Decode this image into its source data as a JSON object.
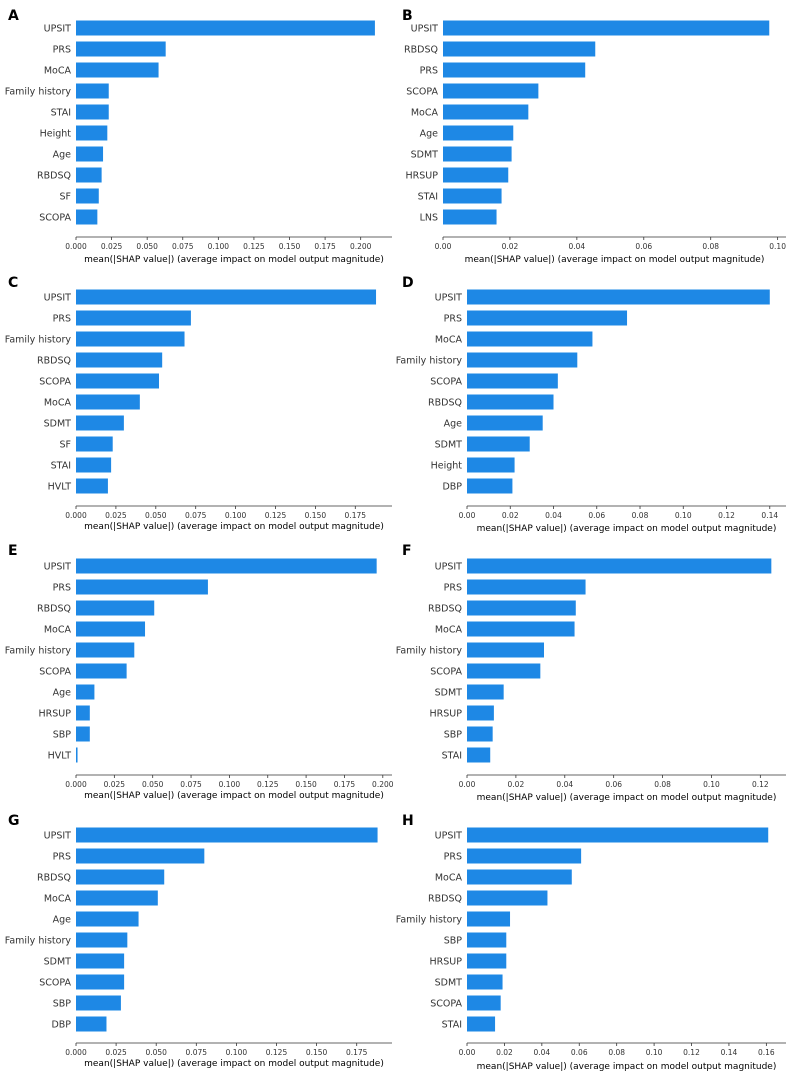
{
  "colors": {
    "bar": "#1e88e5",
    "axis": "#333333",
    "text": "#333333"
  },
  "chart_data": [
    {
      "panel": "A",
      "type": "bar",
      "orientation": "horizontal",
      "xlabel": "mean(|SHAP value|) (average impact on model output magnitude)",
      "categories": [
        "UPSIT",
        "PRS",
        "MoCA",
        "Family history",
        "STAI",
        "Height",
        "Age",
        "RBDSQ",
        "SF",
        "SCOPA"
      ],
      "values": [
        0.21,
        0.063,
        0.058,
        0.023,
        0.023,
        0.022,
        0.019,
        0.018,
        0.016,
        0.015
      ],
      "xlim": [
        0,
        0.222
      ],
      "ticks": [
        0,
        0.025,
        0.05,
        0.075,
        0.1,
        0.125,
        0.15,
        0.175,
        0.2
      ],
      "tick_labels": [
        "0.000",
        "0.025",
        "0.050",
        "0.075",
        "0.100",
        "0.125",
        "0.150",
        "0.175",
        "0.200"
      ]
    },
    {
      "panel": "B",
      "type": "bar",
      "orientation": "horizontal",
      "xlabel": "mean(|SHAP value|) (average impact on model output magnitude)",
      "categories": [
        "UPSIT",
        "RBDSQ",
        "PRS",
        "SCOPA",
        "MoCA",
        "Age",
        "SDMT",
        "HRSUP",
        "STAI",
        "LNS"
      ],
      "values": [
        0.0975,
        0.0455,
        0.0425,
        0.0285,
        0.0255,
        0.021,
        0.0205,
        0.0195,
        0.0175,
        0.016
      ],
      "xlim": [
        0,
        0.1025
      ],
      "ticks": [
        0,
        0.02,
        0.04,
        0.06,
        0.08,
        0.1
      ],
      "tick_labels": [
        "0.00",
        "0.02",
        "0.04",
        "0.06",
        "0.08",
        "0.10"
      ]
    },
    {
      "panel": "C",
      "type": "bar",
      "orientation": "horizontal",
      "xlabel": "mean(|SHAP value|) (average impact on model output magnitude)",
      "categories": [
        "UPSIT",
        "PRS",
        "Family history",
        "RBDSQ",
        "SCOPA",
        "MoCA",
        "SDMT",
        "SF",
        "STAI",
        "HVLT"
      ],
      "values": [
        0.188,
        0.072,
        0.068,
        0.054,
        0.052,
        0.04,
        0.03,
        0.023,
        0.022,
        0.02
      ],
      "xlim": [
        0,
        0.198
      ],
      "ticks": [
        0,
        0.025,
        0.05,
        0.075,
        0.1,
        0.125,
        0.15,
        0.175
      ],
      "tick_labels": [
        "0.000",
        "0.025",
        "0.050",
        "0.075",
        "0.100",
        "0.125",
        "0.150",
        "0.175"
      ]
    },
    {
      "panel": "D",
      "type": "bar",
      "orientation": "horizontal",
      "xlabel": "mean(|SHAP value|) (average impact on model output magnitude)",
      "categories": [
        "UPSIT",
        "PRS",
        "MoCA",
        "Family history",
        "SCOPA",
        "RBDSQ",
        "Age",
        "SDMT",
        "Height",
        "DBP"
      ],
      "values": [
        0.14,
        0.074,
        0.058,
        0.051,
        0.042,
        0.04,
        0.035,
        0.029,
        0.022,
        0.021
      ],
      "xlim": [
        0,
        0.1475
      ],
      "ticks": [
        0,
        0.02,
        0.04,
        0.06,
        0.08,
        0.1,
        0.12,
        0.14
      ],
      "tick_labels": [
        "0.00",
        "0.02",
        "0.04",
        "0.06",
        "0.08",
        "0.10",
        "0.12",
        "0.14"
      ]
    },
    {
      "panel": "E",
      "type": "bar",
      "orientation": "horizontal",
      "xlabel": "mean(|SHAP value|) (average impact on model output magnitude)",
      "categories": [
        "UPSIT",
        "PRS",
        "RBDSQ",
        "MoCA",
        "Family history",
        "SCOPA",
        "Age",
        "HRSUP",
        "SBP",
        "HVLT"
      ],
      "values": [
        0.196,
        0.086,
        0.051,
        0.045,
        0.038,
        0.033,
        0.012,
        0.009,
        0.009,
        0.001
      ],
      "xlim": [
        0,
        0.206
      ],
      "ticks": [
        0,
        0.025,
        0.05,
        0.075,
        0.1,
        0.125,
        0.15,
        0.175,
        0.2
      ],
      "tick_labels": [
        "0.000",
        "0.025",
        "0.050",
        "0.075",
        "0.100",
        "0.125",
        "0.150",
        "0.175",
        "0.200"
      ]
    },
    {
      "panel": "F",
      "type": "bar",
      "orientation": "horizontal",
      "xlabel": "mean(|SHAP value|) (average impact on model output magnitude)",
      "categories": [
        "UPSIT",
        "PRS",
        "RBDSQ",
        "MoCA",
        "Family history",
        "SCOPA",
        "SDMT",
        "HRSUP",
        "SBP",
        "STAI"
      ],
      "values": [
        0.1245,
        0.0485,
        0.0445,
        0.044,
        0.0315,
        0.03,
        0.015,
        0.011,
        0.0105,
        0.0095
      ],
      "xlim": [
        0,
        0.1305
      ],
      "ticks": [
        0,
        0.02,
        0.04,
        0.06,
        0.08,
        0.1,
        0.12
      ],
      "tick_labels": [
        "0.00",
        "0.02",
        "0.04",
        "0.06",
        "0.08",
        "0.10",
        "0.12"
      ]
    },
    {
      "panel": "G",
      "type": "bar",
      "orientation": "horizontal",
      "xlabel": "mean(|SHAP value|) (average impact on model output magnitude)",
      "categories": [
        "UPSIT",
        "PRS",
        "RBDSQ",
        "MoCA",
        "Age",
        "Family history",
        "SDMT",
        "SCOPA",
        "SBP",
        "DBP"
      ],
      "values": [
        0.188,
        0.08,
        0.055,
        0.051,
        0.039,
        0.032,
        0.03,
        0.03,
        0.028,
        0.019
      ],
      "xlim": [
        0,
        0.197
      ],
      "ticks": [
        0,
        0.025,
        0.05,
        0.075,
        0.1,
        0.125,
        0.15,
        0.175
      ],
      "tick_labels": [
        "0.000",
        "0.025",
        "0.050",
        "0.075",
        "0.100",
        "0.125",
        "0.150",
        "0.175"
      ]
    },
    {
      "panel": "H",
      "type": "bar",
      "orientation": "horizontal",
      "xlabel": "mean(|SHAP value|) (average impact on model output magnitude)",
      "categories": [
        "UPSIT",
        "PRS",
        "MoCA",
        "RBDSQ",
        "Family history",
        "SBP",
        "HRSUP",
        "SDMT",
        "SCOPA",
        "STAI"
      ],
      "values": [
        0.161,
        0.061,
        0.056,
        0.043,
        0.023,
        0.021,
        0.021,
        0.019,
        0.018,
        0.015
      ],
      "xlim": [
        0,
        0.1705
      ],
      "ticks": [
        0,
        0.02,
        0.04,
        0.06,
        0.08,
        0.1,
        0.12,
        0.14,
        0.16
      ],
      "tick_labels": [
        "0.00",
        "0.02",
        "0.04",
        "0.06",
        "0.08",
        "0.10",
        "0.12",
        "0.14",
        "0.16"
      ]
    }
  ]
}
